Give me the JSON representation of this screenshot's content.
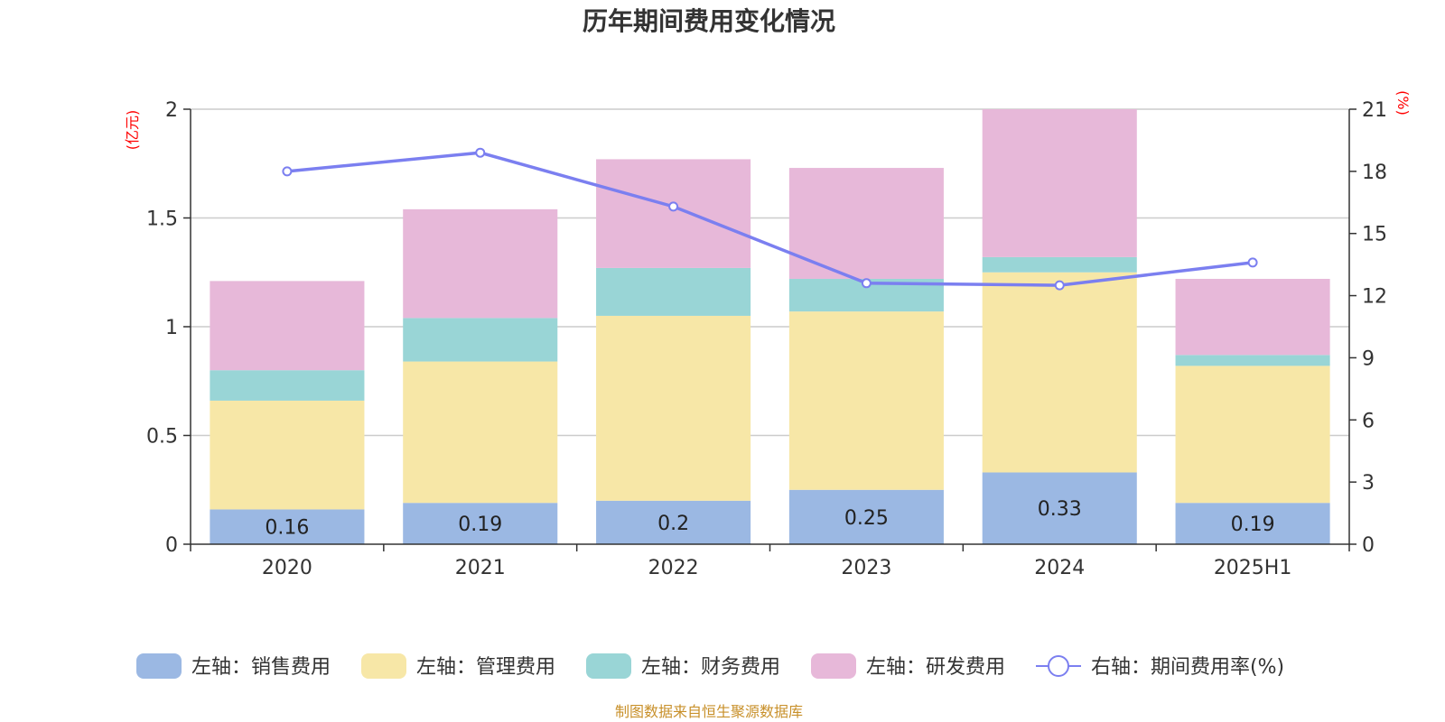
{
  "chart_data": {
    "type": "bar",
    "title": "历年期间费用变化情况",
    "categories": [
      "2020",
      "2021",
      "2022",
      "2023",
      "2024",
      "2025H1"
    ],
    "left_axis": {
      "unit": "(亿元)",
      "ylim": [
        0,
        2
      ],
      "ticks": [
        "0",
        "0.5",
        "1",
        "1.5",
        "2"
      ],
      "tick_values": [
        0,
        0.5,
        1,
        1.5,
        2
      ]
    },
    "right_axis": {
      "unit": "(%)",
      "ylim": [
        0,
        21
      ],
      "ticks": [
        "0",
        "3",
        "6",
        "9",
        "12",
        "15",
        "18",
        "21"
      ],
      "tick_values": [
        0,
        3,
        6,
        9,
        12,
        15,
        18,
        21
      ]
    },
    "stack_series": [
      {
        "name": "左轴：销售费用",
        "color": "#9bb8e3",
        "values": [
          0.16,
          0.19,
          0.2,
          0.25,
          0.33,
          0.19
        ],
        "labels": [
          "0.16",
          "0.19",
          "0.2",
          "0.25",
          "0.33",
          "0.19"
        ]
      },
      {
        "name": "左轴：管理费用",
        "color": "#f7e7a7",
        "values": [
          0.5,
          0.65,
          0.85,
          0.82,
          0.92,
          0.63
        ]
      },
      {
        "name": "左轴：财务费用",
        "color": "#99d5d6",
        "values": [
          0.14,
          0.2,
          0.22,
          0.15,
          0.07,
          0.05
        ]
      },
      {
        "name": "左轴：研发费用",
        "color": "#e7b8d9",
        "values": [
          0.41,
          0.5,
          0.5,
          0.51,
          0.68,
          0.35
        ]
      }
    ],
    "line_series": {
      "name": "右轴：期间费用率(%)",
      "color": "#7b7ff0",
      "values": [
        18.0,
        18.9,
        16.3,
        12.6,
        12.5,
        13.6
      ]
    },
    "grid": true,
    "legend_position": "bottom"
  },
  "source": "制图数据来自恒生聚源数据库"
}
